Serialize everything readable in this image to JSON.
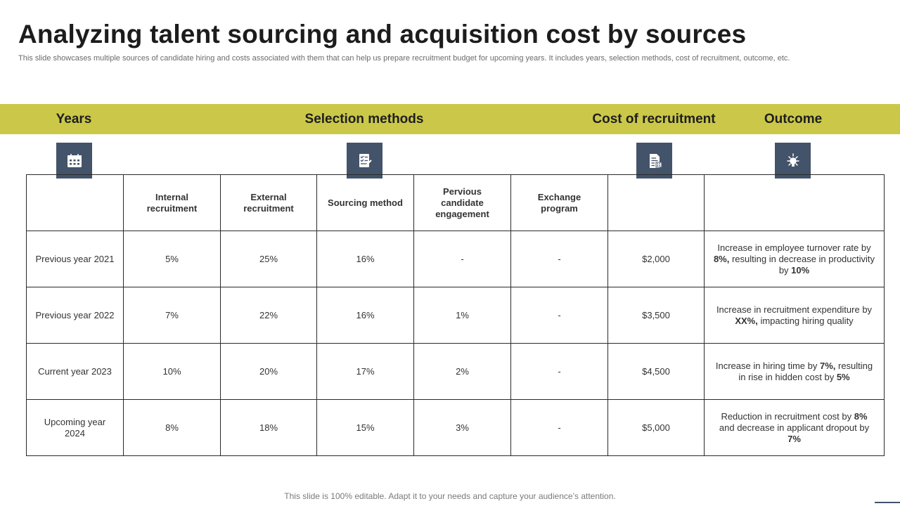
{
  "title": "Analyzing talent sourcing and acquisition cost by sources",
  "subtitle": "This slide showcases multiple sources of candidate hiring and costs associated with them that can help us prepare recruitment budget for upcoming years. It includes years, selection methods, cost of recruitment, outcome, etc.",
  "band": {
    "years": "Years",
    "selection_methods": "Selection methods",
    "cost": "Cost of recruitment",
    "outcome": "Outcome"
  },
  "icons": {
    "years": "calendar-icon",
    "selection_methods": "checklist-icon",
    "cost": "invoice-icon",
    "outcome": "idea-bulb-icon"
  },
  "table": {
    "headers": [
      "",
      "Internal recruitment",
      "External recruitment",
      "Sourcing method",
      "Pervious candidate engagement",
      "Exchange program",
      "",
      ""
    ],
    "rows": [
      {
        "year": "Previous year 2021",
        "internal": "5%",
        "external": "25%",
        "sourcing": "16%",
        "engagement": "-",
        "exchange": "-",
        "cost": "$2,000",
        "outcome": {
          "p1": "Increase in employee turnover rate by ",
          "b1": "8%,",
          "p2": " resulting in decrease in productivity by ",
          "b2": "10%",
          "p3": ""
        }
      },
      {
        "year": "Previous year 2022",
        "internal": "7%",
        "external": "22%",
        "sourcing": "16%",
        "engagement": "1%",
        "exchange": "-",
        "cost": "$3,500",
        "outcome": {
          "p1": "Increase in recruitment expenditure by ",
          "b1": "XX%,",
          "p2": " impacting hiring quality",
          "b2": "",
          "p3": ""
        }
      },
      {
        "year": "Current year 2023",
        "internal": "10%",
        "external": "20%",
        "sourcing": "17%",
        "engagement": "2%",
        "exchange": "-",
        "cost": "$4,500",
        "outcome": {
          "p1": "Increase in hiring time by ",
          "b1": "7%,",
          "p2": " resulting in rise in hidden cost by ",
          "b2": "5%",
          "p3": ""
        }
      },
      {
        "year": "Upcoming year 2024",
        "internal": "8%",
        "external": "18%",
        "sourcing": "15%",
        "engagement": "3%",
        "exchange": "-",
        "cost": "$5,000",
        "outcome": {
          "p1": "Reduction in recruitment cost by ",
          "b1": "8%",
          "p2": " and decrease in applicant dropout by ",
          "b2": "7%",
          "p3": ""
        }
      }
    ]
  },
  "footer": "This slide is 100% editable. Adapt it to your needs and capture your audience’s attention.",
  "colors": {
    "band": "#cbc849",
    "icon_bg": "#43536a",
    "title": "#1c1c1c"
  }
}
